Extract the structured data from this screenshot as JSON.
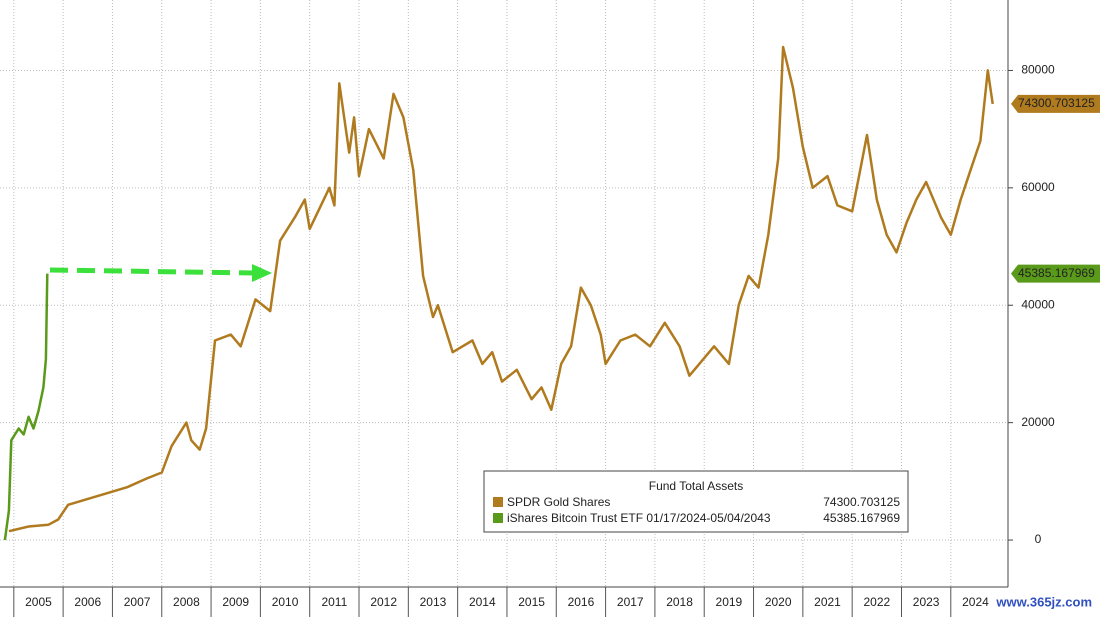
{
  "chart_data": {
    "type": "line",
    "xlim": [
      2004.72,
      2025.16
    ],
    "ylim": [
      -8000,
      92000
    ],
    "xticks": [
      2005,
      2006,
      2007,
      2008,
      2009,
      2010,
      2011,
      2012,
      2013,
      2014,
      2015,
      2016,
      2017,
      2018,
      2019,
      2020,
      2021,
      2022,
      2023,
      2024
    ],
    "yticks": [
      0,
      20000,
      40000,
      60000,
      80000
    ],
    "grid": true,
    "legend": {
      "title": "Fund Total Assets",
      "position": "lower right"
    },
    "watermark": "www.365jz.com",
    "series": [
      {
        "name": "SPDR Gold Shares",
        "color": "#b07a1e",
        "x": [
          2004.9,
          2005.3,
          2005.7,
          2005.9,
          2006.1,
          2006.5,
          2006.9,
          2007.3,
          2007.7,
          2008.0,
          2008.2,
          2008.5,
          2008.6,
          2008.77,
          2008.9,
          2009.08,
          2009.4,
          2009.6,
          2009.9,
          2010.2,
          2010.4,
          2010.7,
          2010.9,
          2011.0,
          2011.4,
          2011.5,
          2011.6,
          2011.8,
          2011.9,
          2012.0,
          2012.2,
          2012.5,
          2012.7,
          2012.9,
          2013.1,
          2013.3,
          2013.5,
          2013.6,
          2013.9,
          2014.3,
          2014.5,
          2014.7,
          2014.9,
          2015.2,
          2015.5,
          2015.7,
          2015.9,
          2016.1,
          2016.3,
          2016.5,
          2016.7,
          2016.9,
          2017.0,
          2017.3,
          2017.6,
          2017.9,
          2018.2,
          2018.5,
          2018.7,
          2018.9,
          2019.2,
          2019.5,
          2019.7,
          2019.9,
          2020.1,
          2020.3,
          2020.5,
          2020.6,
          2020.8,
          2021.0,
          2021.2,
          2021.5,
          2021.7,
          2022.0,
          2022.3,
          2022.5,
          2022.7,
          2022.9,
          2023.1,
          2023.3,
          2023.5,
          2023.8,
          2024.0,
          2024.2,
          2024.4,
          2024.6,
          2024.75,
          2024.85
        ],
        "values": [
          1500,
          2300,
          2600,
          3500,
          6000,
          7000,
          8000,
          9000,
          10500,
          11500,
          16000,
          20000,
          17000,
          15400,
          19000,
          34000,
          35000,
          33000,
          41000,
          39000,
          51000,
          55000,
          58000,
          53000,
          60000,
          57000,
          77800,
          66000,
          72000,
          62000,
          70000,
          65000,
          76000,
          72000,
          63000,
          45000,
          38000,
          40000,
          32000,
          34000,
          30000,
          32000,
          27000,
          29000,
          24000,
          26000,
          22200,
          30000,
          33000,
          43000,
          40000,
          35000,
          30000,
          34000,
          35000,
          33000,
          37000,
          33000,
          28000,
          30000,
          33000,
          30000,
          40000,
          45000,
          43000,
          52000,
          65000,
          84000,
          77000,
          67000,
          60000,
          62000,
          57000,
          56000,
          69000,
          58000,
          52000,
          49000,
          54000,
          58000,
          61000,
          55000,
          52000,
          58000,
          63000,
          68000,
          80000,
          74300.703125
        ]
      },
      {
        "name": "iShares Bitcoin Trust ETF 01/17/2024-05/04/2043",
        "color": "#5a9a1a",
        "x": [
          2004.82,
          2004.9,
          2004.95,
          2005.1,
          2005.2,
          2005.3,
          2005.4,
          2005.5,
          2005.6,
          2005.65,
          2005.68
        ],
        "values": [
          0,
          5000,
          17000,
          19000,
          18000,
          21000,
          19000,
          22000,
          26000,
          30800,
          45385.167969
        ]
      }
    ]
  }
}
